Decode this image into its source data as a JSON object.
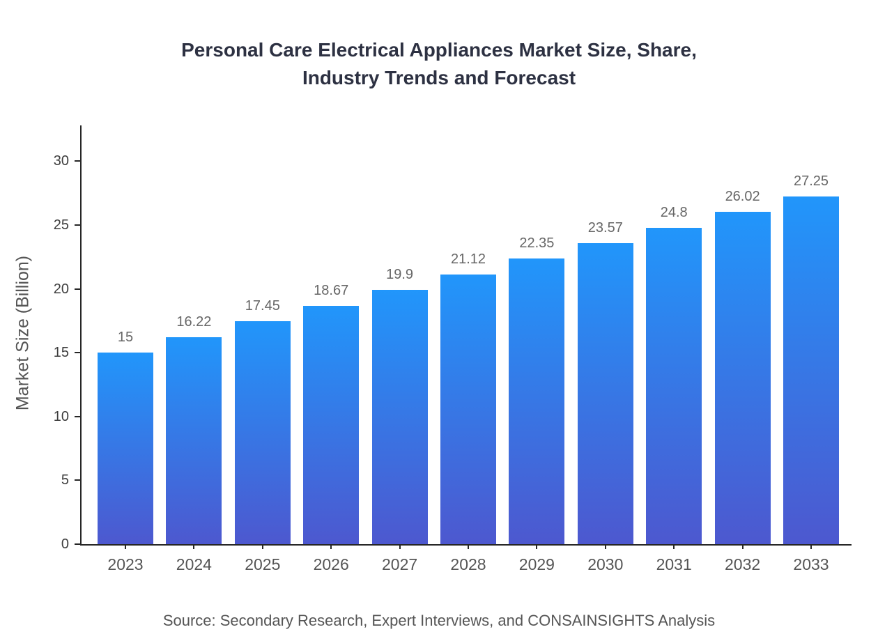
{
  "title": {
    "line1": "Personal Care Electrical Appliances Market Size, Share,",
    "line2": "Industry Trends and Forecast"
  },
  "source": "Source: Secondary Research, Expert Interviews, and CONSAINSIGHTS Analysis",
  "colors": {
    "bar_gradient_top": "#2196fb",
    "bar_gradient_bottom": "#4d58cf",
    "axis": "#262626",
    "title_text": "#2d3142",
    "tick_text": "#3d3d3d",
    "label_text": "#555555",
    "value_text": "#666666",
    "background": "#ffffff"
  },
  "chart_data": {
    "type": "bar",
    "title": "Personal Care Electrical Appliances Market Size, Share, Industry Trends and Forecast",
    "categories": [
      "2023",
      "2024",
      "2025",
      "2026",
      "2027",
      "2028",
      "2029",
      "2030",
      "2031",
      "2032",
      "2033"
    ],
    "values": [
      15,
      16.22,
      17.45,
      18.67,
      19.9,
      21.12,
      22.35,
      23.57,
      24.8,
      26.02,
      27.25
    ],
    "value_labels": [
      "15",
      "16.22",
      "17.45",
      "18.67",
      "19.9",
      "21.12",
      "22.35",
      "23.57",
      "24.8",
      "26.02",
      "27.25"
    ],
    "xlabel": "",
    "ylabel": "Market Size (Billion)",
    "ylim": [
      0,
      32.8
    ],
    "yticks": [
      0,
      5,
      10,
      15,
      20,
      25,
      30
    ],
    "grid": false,
    "legend": "none",
    "annotation": "Source: Secondary Research, Expert Interviews, and CONSAINSIGHTS Analysis"
  }
}
